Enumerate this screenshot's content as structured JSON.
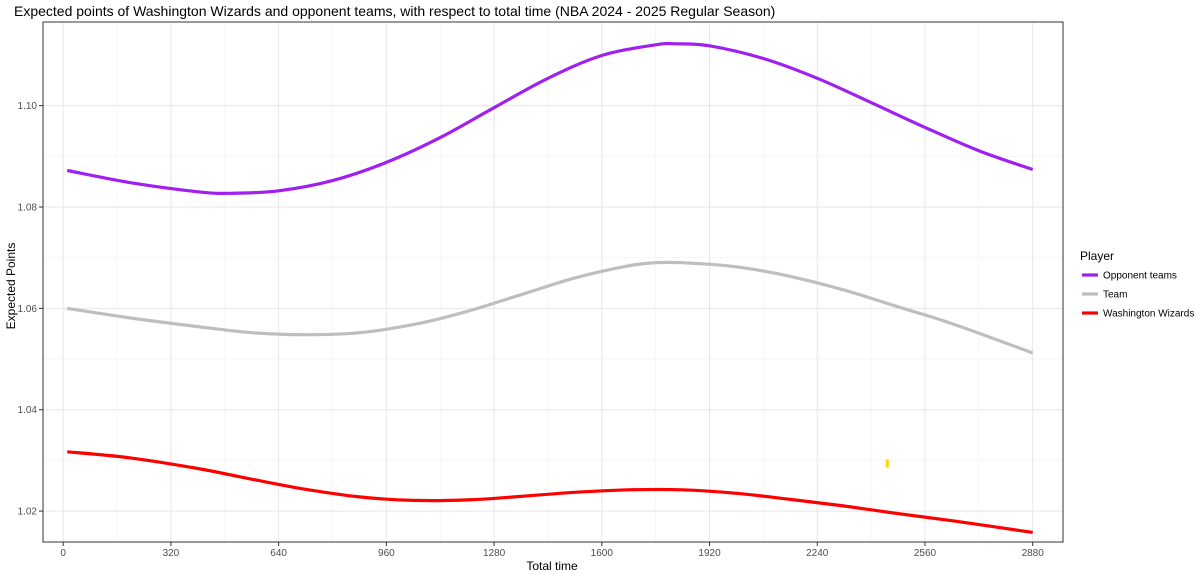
{
  "chart_data": {
    "type": "line",
    "title": "Expected points of Washington Wizards and opponent teams, with respect to total time (NBA 2024 - 2025 Regular Season)",
    "xlabel": "Total time",
    "ylabel": "Expected Points",
    "xlim": [
      -60,
      2970
    ],
    "ylim": [
      1.0139,
      1.1165
    ],
    "x_ticks": [
      0,
      320,
      640,
      960,
      1280,
      1600,
      1920,
      2240,
      2560,
      2880
    ],
    "x_tick_labels": [
      "0",
      "320",
      "640",
      "960",
      "1280",
      "1600",
      "1920",
      "2240",
      "2560",
      "2880"
    ],
    "y_ticks": [
      1.02,
      1.04,
      1.06,
      1.08,
      1.1
    ],
    "y_tick_labels": [
      "1.02",
      "1.04",
      "1.06",
      "1.08",
      "1.10"
    ],
    "grid": true,
    "legend": {
      "title": "Player",
      "position": "right"
    },
    "series": [
      {
        "name": "Opponent teams",
        "color": "#a020f0",
        "x": [
          12,
          200,
          400,
          500,
          640,
          800,
          960,
          1120,
          1280,
          1440,
          1600,
          1760,
          1820,
          1920,
          2080,
          2240,
          2400,
          2560,
          2720,
          2880
        ],
        "y": [
          1.0872,
          1.0848,
          1.083,
          1.0827,
          1.0832,
          1.0852,
          1.0888,
          1.0937,
          1.0996,
          1.1054,
          1.1099,
          1.112,
          1.1122,
          1.1118,
          1.1093,
          1.1054,
          1.1006,
          1.0957,
          1.0911,
          1.0874
        ]
      },
      {
        "name": "Team",
        "color": "#bebebe",
        "x": [
          12,
          200,
          400,
          560,
          720,
          880,
          1040,
          1200,
          1360,
          1520,
          1680,
          1760,
          1840,
          2000,
          2160,
          2320,
          2480,
          2640,
          2880
        ],
        "y": [
          1.06,
          1.0581,
          1.0564,
          1.0552,
          1.0548,
          1.0552,
          1.0568,
          1.0594,
          1.0627,
          1.066,
          1.0684,
          1.069,
          1.069,
          1.0682,
          1.0663,
          1.0636,
          1.0603,
          1.057,
          1.0512
        ]
      },
      {
        "name": "Washington Wizards",
        "color": "#ff0000",
        "x": [
          12,
          200,
          400,
          560,
          720,
          880,
          1040,
          1200,
          1360,
          1520,
          1680,
          1840,
          2000,
          2160,
          2320,
          2480,
          2640,
          2880
        ],
        "y": [
          1.0317,
          1.0305,
          1.0284,
          1.0263,
          1.0243,
          1.0228,
          1.0221,
          1.0222,
          1.0229,
          1.0237,
          1.0242,
          1.0242,
          1.0235,
          1.0223,
          1.021,
          1.0195,
          1.0181,
          1.0158
        ]
      }
    ],
    "annotations": [
      {
        "type": "mark",
        "color": "#ffd700",
        "x": 2448,
        "y": [
          1.0286,
          1.0302
        ]
      }
    ]
  }
}
